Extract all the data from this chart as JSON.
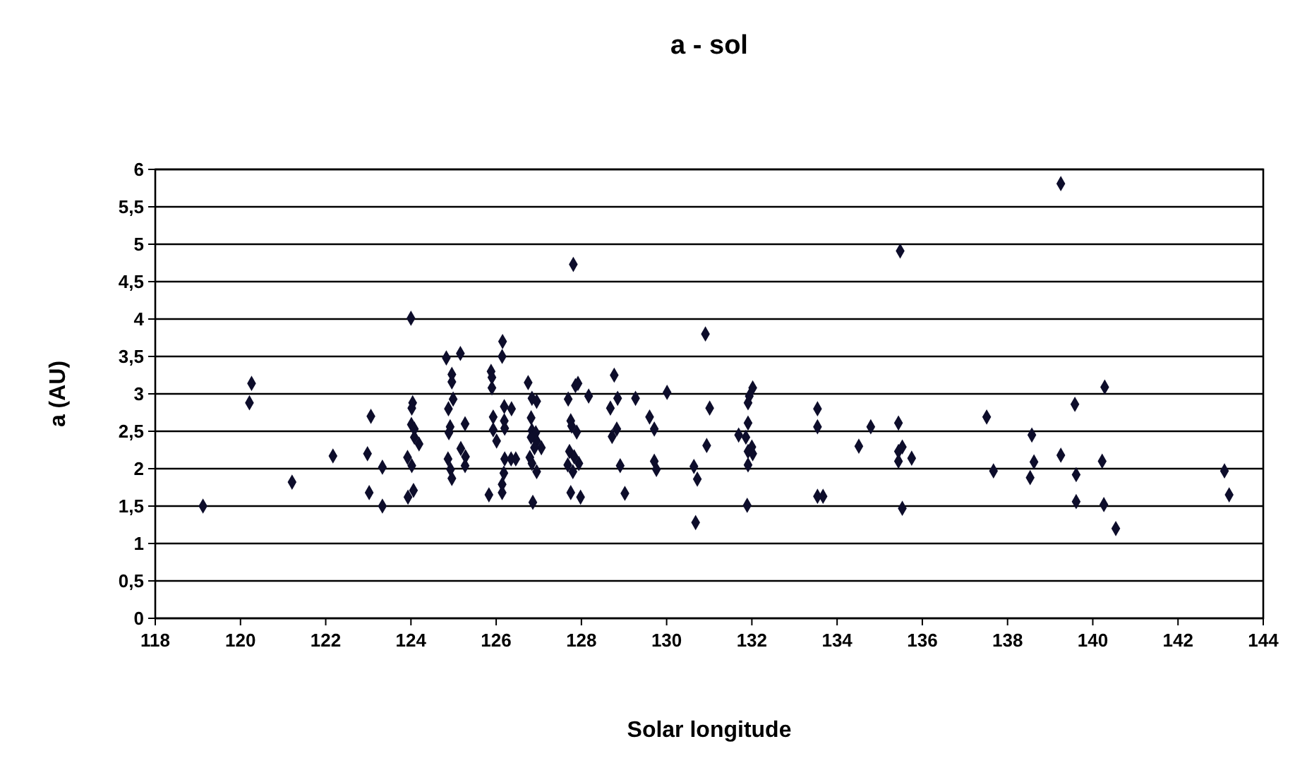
{
  "chart_data": {
    "type": "scatter",
    "title": "a - sol",
    "xlabel": "Solar longitude",
    "ylabel": "a (AU)",
    "xlim": [
      118,
      144
    ],
    "xticks": [
      118,
      120,
      122,
      124,
      126,
      128,
      130,
      132,
      134,
      136,
      138,
      140,
      142,
      144
    ],
    "ylim": [
      0,
      6
    ],
    "yticks": [
      0,
      {
        "value": 0.5,
        "label": "0,5"
      },
      1,
      {
        "value": 1.5,
        "label": "1,5"
      },
      2,
      {
        "value": 2.5,
        "label": "2,5"
      },
      3,
      {
        "value": 3.5,
        "label": "3,5"
      },
      4,
      {
        "value": 4.5,
        "label": "4,5"
      },
      5,
      {
        "value": 5.5,
        "label": "5,5"
      },
      6
    ],
    "grid": "y",
    "marker": "diamond",
    "series": [
      {
        "color": "#0d0d2b",
        "x": [
          119.12,
          120.26,
          120.21,
          121.21,
          122.17,
          123.06,
          122.98,
          123.02,
          123.33,
          123.33,
          124.0,
          124.04,
          124.02,
          124.01,
          124.08,
          124.08,
          124.19,
          123.92,
          124.02,
          124.06,
          123.93,
          124.83,
          125.16,
          124.96,
          124.96,
          124.99,
          124.88,
          124.92,
          124.89,
          125.27,
          125.17,
          125.28,
          125.27,
          124.87,
          124.93,
          124.96,
          125.88,
          125.9,
          125.9,
          126.15,
          126.14,
          126.19,
          126.36,
          125.93,
          126.19,
          126.2,
          125.93,
          126.01,
          126.2,
          126.35,
          126.46,
          126.18,
          126.14,
          126.14,
          125.83,
          126.75,
          126.84,
          126.95,
          126.82,
          126.84,
          126.93,
          126.82,
          126.95,
          127.06,
          126.9,
          126.79,
          126.84,
          126.95,
          126.86,
          127.81,
          127.86,
          127.92,
          127.69,
          128.17,
          127.75,
          127.77,
          127.89,
          127.72,
          127.83,
          127.68,
          127.8,
          127.94,
          127.75,
          127.98,
          128.77,
          128.68,
          128.85,
          129.27,
          128.83,
          128.72,
          128.91,
          129.02,
          129.6,
          129.71,
          129.71,
          129.76,
          130.01,
          130.91,
          131.01,
          130.94,
          130.64,
          130.72,
          130.68,
          132.02,
          131.94,
          131.91,
          131.91,
          131.69,
          131.86,
          132.0,
          131.91,
          132.02,
          131.91,
          131.89,
          133.54,
          133.54,
          133.54,
          133.67,
          134.51,
          134.79,
          135.44,
          135.48,
          135.44,
          135.53,
          135.44,
          135.53,
          135.75,
          139.25,
          137.51,
          137.67,
          138.57,
          138.62,
          138.53,
          139.25,
          139.58,
          139.61,
          139.61,
          140.28,
          140.22,
          140.26,
          140.54,
          143.09,
          143.2
        ],
        "values": [
          1.5,
          3.14,
          2.88,
          1.82,
          2.17,
          2.7,
          2.2,
          1.68,
          2.02,
          1.5,
          4.01,
          2.88,
          2.81,
          2.59,
          2.53,
          2.42,
          2.33,
          2.15,
          2.04,
          1.71,
          1.62,
          3.48,
          3.54,
          3.26,
          3.16,
          2.93,
          2.8,
          2.56,
          2.48,
          2.6,
          2.27,
          2.16,
          2.04,
          2.13,
          1.99,
          1.87,
          3.3,
          3.22,
          3.08,
          3.7,
          3.5,
          2.83,
          2.8,
          2.69,
          2.64,
          2.54,
          2.52,
          2.37,
          2.13,
          2.13,
          2.13,
          1.94,
          1.79,
          1.68,
          1.65,
          3.15,
          2.94,
          2.9,
          2.68,
          2.51,
          2.48,
          2.42,
          2.37,
          2.28,
          2.28,
          2.15,
          2.07,
          1.96,
          1.55,
          4.73,
          3.11,
          3.14,
          2.93,
          2.97,
          2.64,
          2.57,
          2.49,
          2.23,
          2.16,
          2.05,
          1.96,
          2.07,
          1.68,
          1.62,
          3.25,
          2.81,
          2.94,
          2.94,
          2.53,
          2.43,
          2.04,
          1.67,
          2.69,
          2.53,
          2.1,
          1.99,
          3.02,
          3.8,
          2.81,
          2.31,
          2.03,
          1.86,
          1.28,
          3.08,
          2.97,
          2.88,
          2.61,
          2.45,
          2.42,
          2.29,
          2.23,
          2.2,
          2.05,
          1.51,
          2.8,
          2.56,
          1.63,
          1.63,
          2.3,
          2.56,
          2.61,
          4.91,
          2.23,
          2.29,
          2.1,
          1.47,
          2.14,
          5.81,
          2.69,
          1.97,
          2.45,
          2.09,
          1.88,
          2.18,
          2.86,
          1.92,
          1.56,
          3.09,
          2.1,
          1.52,
          1.2,
          1.97,
          1.65
        ]
      }
    ]
  }
}
